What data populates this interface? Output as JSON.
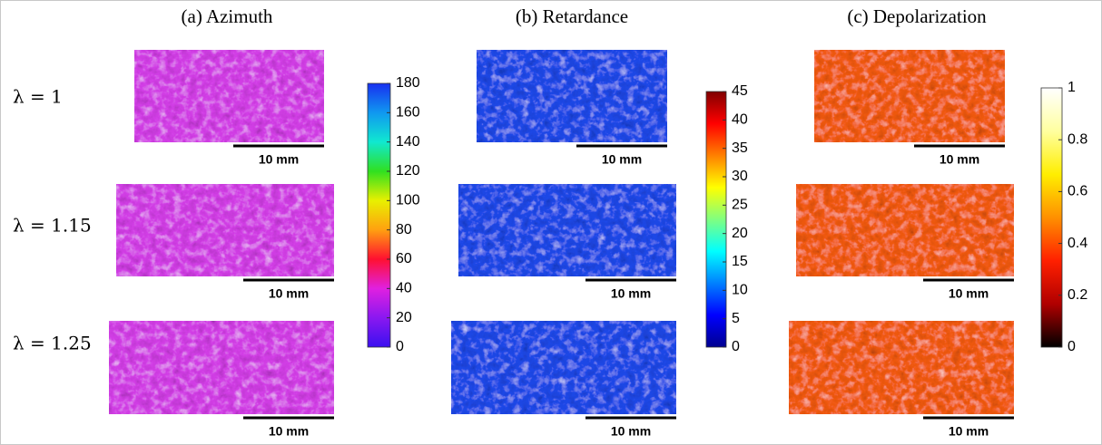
{
  "panels": [
    {
      "title": "(a) Azimuth",
      "image_color": "#d23ee6",
      "colorbar": {
        "lim": [
          0,
          180
        ],
        "ticks": [
          0,
          20,
          40,
          60,
          80,
          100,
          120,
          140,
          160,
          180
        ],
        "colors": [
          "#3a10f0",
          "#8a18f0",
          "#e020e0",
          "#ff1030",
          "#ffa010",
          "#e8f000",
          "#30e020",
          "#10e8d0",
          "#1098f0",
          "#1830f0"
        ]
      }
    },
    {
      "title": "(b) Retardance",
      "image_color": "#1e48e8",
      "colorbar": {
        "lim": [
          0,
          45
        ],
        "ticks": [
          0,
          5,
          10,
          15,
          20,
          25,
          30,
          35,
          40,
          45
        ],
        "colors": [
          "#00008f",
          "#0000ff",
          "#0080ff",
          "#00ffff",
          "#80ff80",
          "#ffff00",
          "#ff8000",
          "#ff0000",
          "#800000"
        ]
      }
    },
    {
      "title": "(c) Depolarization",
      "image_color": "#f25a12",
      "colorbar": {
        "lim": [
          0,
          1
        ],
        "ticks": [
          0,
          0.2,
          0.4,
          0.6,
          0.8,
          1
        ],
        "colors": [
          "#000000",
          "#b00000",
          "#ff2000",
          "#ff9000",
          "#ffee00",
          "#ffffa0",
          "#ffffff"
        ]
      }
    }
  ],
  "rows": [
    {
      "label": "λ = 1"
    },
    {
      "label": "λ = 1.15"
    },
    {
      "label": "λ = 1.25"
    }
  ],
  "scale_bar": "10 mm"
}
